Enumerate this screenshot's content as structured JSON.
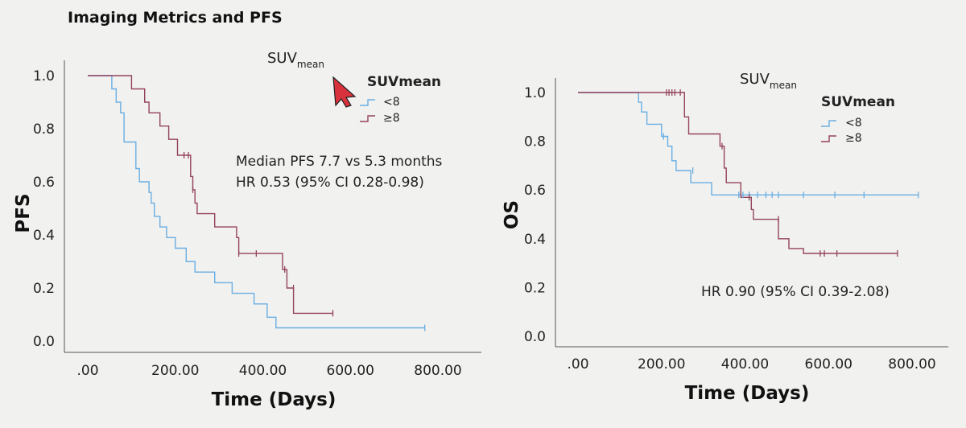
{
  "page": {
    "title": "Imaging Metrics and PFS"
  },
  "colors": {
    "lt8": "#6aaee2",
    "ge8": "#94445a",
    "cursor": "#d8323c"
  },
  "chart_data": [
    {
      "type": "line",
      "subtype": "kaplan-meier step",
      "title_main": "SUV",
      "title_sub": "mean",
      "xlabel": "Time (Days)",
      "ylabel": "PFS",
      "xlim": [
        -100,
        850
      ],
      "ylim": [
        -0.05,
        1.05
      ],
      "xticks": [
        0,
        200,
        400,
        600,
        800
      ],
      "xtick_labels": [
        ".00",
        "200.00",
        "400.00",
        "600.00",
        "800.00"
      ],
      "yticks": [
        0.0,
        0.2,
        0.4,
        0.6,
        0.8,
        1.0
      ],
      "ytick_labels": [
        "0.0",
        "0.2",
        "0.4",
        "0.6",
        "0.8",
        "1.0"
      ],
      "grid": false,
      "legend": {
        "title": "SUVmean",
        "placement": "top-right"
      },
      "annotations": [
        "Median PFS 7.7 vs 5.3 months",
        "HR 0.53 (95% CI 0.28-0.98)"
      ],
      "series": [
        {
          "name": "<8",
          "color_key": "lt8",
          "steps": [
            [
              0,
              1.0
            ],
            [
              55,
              1.0
            ],
            [
              55,
              0.95
            ],
            [
              65,
              0.95
            ],
            [
              65,
              0.9
            ],
            [
              75,
              0.9
            ],
            [
              75,
              0.86
            ],
            [
              83,
              0.86
            ],
            [
              83,
              0.75
            ],
            [
              110,
              0.75
            ],
            [
              110,
              0.65
            ],
            [
              118,
              0.65
            ],
            [
              118,
              0.6
            ],
            [
              140,
              0.6
            ],
            [
              140,
              0.56
            ],
            [
              145,
              0.56
            ],
            [
              145,
              0.52
            ],
            [
              152,
              0.52
            ],
            [
              152,
              0.47
            ],
            [
              165,
              0.47
            ],
            [
              165,
              0.43
            ],
            [
              180,
              0.43
            ],
            [
              180,
              0.39
            ],
            [
              200,
              0.39
            ],
            [
              200,
              0.35
            ],
            [
              225,
              0.35
            ],
            [
              225,
              0.3
            ],
            [
              245,
              0.3
            ],
            [
              245,
              0.26
            ],
            [
              290,
              0.26
            ],
            [
              290,
              0.22
            ],
            [
              330,
              0.22
            ],
            [
              330,
              0.18
            ],
            [
              380,
              0.18
            ],
            [
              380,
              0.14
            ],
            [
              410,
              0.14
            ],
            [
              410,
              0.09
            ],
            [
              430,
              0.09
            ],
            [
              430,
              0.05
            ],
            [
              770,
              0.05
            ]
          ],
          "censored": [
            [
              770,
              0.05
            ]
          ]
        },
        {
          "name": "≥8",
          "color_key": "ge8",
          "steps": [
            [
              0,
              1.0
            ],
            [
              100,
              1.0
            ],
            [
              100,
              0.95
            ],
            [
              130,
              0.95
            ],
            [
              130,
              0.9
            ],
            [
              140,
              0.9
            ],
            [
              140,
              0.86
            ],
            [
              165,
              0.86
            ],
            [
              165,
              0.81
            ],
            [
              185,
              0.81
            ],
            [
              185,
              0.76
            ],
            [
              205,
              0.76
            ],
            [
              205,
              0.7
            ],
            [
              235,
              0.7
            ],
            [
              235,
              0.62
            ],
            [
              240,
              0.62
            ],
            [
              240,
              0.57
            ],
            [
              245,
              0.57
            ],
            [
              245,
              0.52
            ],
            [
              250,
              0.52
            ],
            [
              250,
              0.48
            ],
            [
              290,
              0.48
            ],
            [
              290,
              0.43
            ],
            [
              340,
              0.43
            ],
            [
              340,
              0.39
            ],
            [
              345,
              0.39
            ],
            [
              345,
              0.33
            ],
            [
              445,
              0.33
            ],
            [
              445,
              0.27
            ],
            [
              455,
              0.27
            ],
            [
              455,
              0.2
            ],
            [
              470,
              0.2
            ],
            [
              470,
              0.105
            ],
            [
              560,
              0.105
            ]
          ],
          "censored": [
            [
              220,
              0.7
            ],
            [
              230,
              0.7
            ],
            [
              240,
              0.57
            ],
            [
              345,
              0.33
            ],
            [
              385,
              0.33
            ],
            [
              450,
              0.27
            ],
            [
              470,
              0.2
            ],
            [
              560,
              0.105
            ]
          ]
        }
      ]
    },
    {
      "type": "line",
      "subtype": "kaplan-meier step",
      "title_main": "SUV",
      "title_sub": "mean",
      "xlabel": "Time (Days)",
      "ylabel": "OS",
      "xlim": [
        -100,
        850
      ],
      "ylim": [
        -0.05,
        1.05
      ],
      "xticks": [
        0,
        200,
        400,
        600,
        800
      ],
      "xtick_labels": [
        ".00",
        "200.00",
        "400.00",
        "600.00",
        "800.00"
      ],
      "yticks": [
        0.0,
        0.2,
        0.4,
        0.6,
        0.8,
        1.0
      ],
      "ytick_labels": [
        "0.0",
        "0.2",
        "0.4",
        "0.6",
        "0.8",
        "1.0"
      ],
      "grid": false,
      "legend": {
        "title": "SUVmean",
        "placement": "top-right"
      },
      "annotations": [
        "HR 0.90 (95% CI 0.39-2.08)"
      ],
      "series": [
        {
          "name": "<8",
          "color_key": "lt8",
          "steps": [
            [
              0,
              1.0
            ],
            [
              145,
              1.0
            ],
            [
              145,
              0.96
            ],
            [
              152,
              0.96
            ],
            [
              152,
              0.92
            ],
            [
              165,
              0.92
            ],
            [
              165,
              0.87
            ],
            [
              200,
              0.87
            ],
            [
              200,
              0.82
            ],
            [
              215,
              0.82
            ],
            [
              215,
              0.78
            ],
            [
              225,
              0.78
            ],
            [
              225,
              0.72
            ],
            [
              235,
              0.72
            ],
            [
              235,
              0.68
            ],
            [
              270,
              0.68
            ],
            [
              270,
              0.63
            ],
            [
              320,
              0.63
            ],
            [
              320,
              0.58
            ],
            [
              815,
              0.58
            ]
          ],
          "censored": [
            [
              205,
              0.82
            ],
            [
              275,
              0.68
            ],
            [
              385,
              0.58
            ],
            [
              395,
              0.58
            ],
            [
              410,
              0.58
            ],
            [
              430,
              0.58
            ],
            [
              450,
              0.58
            ],
            [
              465,
              0.58
            ],
            [
              480,
              0.58
            ],
            [
              540,
              0.58
            ],
            [
              615,
              0.58
            ],
            [
              685,
              0.58
            ],
            [
              815,
              0.58
            ]
          ]
        },
        {
          "name": "≥8",
          "color_key": "ge8",
          "steps": [
            [
              0,
              1.0
            ],
            [
              255,
              1.0
            ],
            [
              255,
              0.9
            ],
            [
              265,
              0.9
            ],
            [
              265,
              0.83
            ],
            [
              340,
              0.83
            ],
            [
              340,
              0.78
            ],
            [
              350,
              0.78
            ],
            [
              350,
              0.69
            ],
            [
              355,
              0.69
            ],
            [
              355,
              0.63
            ],
            [
              390,
              0.63
            ],
            [
              390,
              0.57
            ],
            [
              415,
              0.57
            ],
            [
              415,
              0.52
            ],
            [
              420,
              0.52
            ],
            [
              420,
              0.48
            ],
            [
              480,
              0.48
            ],
            [
              480,
              0.4
            ],
            [
              505,
              0.4
            ],
            [
              505,
              0.36
            ],
            [
              540,
              0.36
            ],
            [
              540,
              0.34
            ],
            [
              765,
              0.34
            ]
          ],
          "censored": [
            [
              212,
              1.0
            ],
            [
              218,
              1.0
            ],
            [
              225,
              1.0
            ],
            [
              232,
              1.0
            ],
            [
              245,
              1.0
            ],
            [
              345,
              0.78
            ],
            [
              410,
              0.57
            ],
            [
              480,
              0.48
            ],
            [
              580,
              0.34
            ],
            [
              590,
              0.34
            ],
            [
              620,
              0.34
            ],
            [
              765,
              0.34
            ]
          ]
        }
      ]
    }
  ]
}
